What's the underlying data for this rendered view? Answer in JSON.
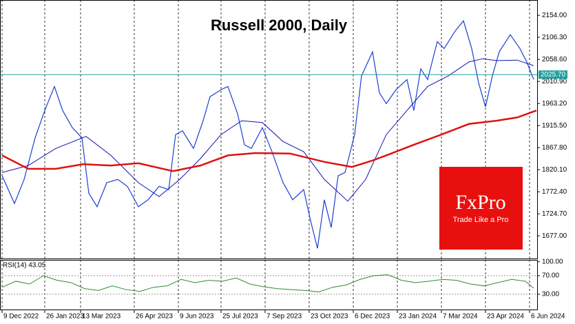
{
  "chart_data": [
    {
      "type": "line",
      "title": "Russell 2000, Daily",
      "xlim": [
        -1.5,
        388.5
      ],
      "xticks": [
        {
          "value": 0,
          "label": "9 Dec 2022"
        },
        {
          "value": 31,
          "label": "26 Jan 2023"
        },
        {
          "value": 57,
          "label": "13 Mar 2023"
        },
        {
          "value": 96,
          "label": "26 Apr 2023"
        },
        {
          "value": 128,
          "label": "9 Jun 2023"
        },
        {
          "value": 159,
          "label": "25 Jul 2023"
        },
        {
          "value": 191,
          "label": "7 Sep 2023"
        },
        {
          "value": 223,
          "label": "23 Oct 2023"
        },
        {
          "value": 255,
          "label": "6 Dec 2023"
        },
        {
          "value": 287,
          "label": "23 Jan 2024"
        },
        {
          "value": 319,
          "label": "7 Mar 2024"
        },
        {
          "value": 351,
          "label": "23 Apr 2024"
        },
        {
          "value": 383,
          "label": "6 Jun 2024"
        }
      ],
      "ylim": [
        1628,
        2187
      ],
      "yticks": [
        {
          "value": 2154,
          "label": "2154.00"
        },
        {
          "value": 2106.3,
          "label": "2106.30"
        },
        {
          "value": 2058.6,
          "label": "2058.60"
        },
        {
          "value": 2010.9,
          "label": "2010.90"
        },
        {
          "value": 1963.2,
          "label": "1963.20"
        },
        {
          "value": 1915.5,
          "label": "1915.50"
        },
        {
          "value": 1867.8,
          "label": "1867.80"
        },
        {
          "value": 1820.1,
          "label": "1820.10"
        },
        {
          "value": 1772.4,
          "label": "1772.40"
        },
        {
          "value": 1724.7,
          "label": "1724.70"
        },
        {
          "value": 1677,
          "label": "1677.00"
        }
      ],
      "current_price": {
        "value": 2025.7,
        "label": "2025.70"
      },
      "current_color": "#20a0a0",
      "series": [
        {
          "color": "#1a3fd0",
          "width": 1.2,
          "x": [
            0,
            9,
            16,
            24,
            31,
            38,
            44,
            51,
            58,
            63,
            69,
            76,
            84,
            91,
            99,
            106,
            114,
            121,
            126,
            131,
            139,
            146,
            151,
            159,
            164,
            171,
            176,
            181,
            189,
            196,
            204,
            211,
            219,
            224,
            229,
            234,
            239,
            244,
            249,
            256,
            261,
            269,
            274,
            279,
            286,
            294,
            299,
            304,
            309,
            316,
            321,
            329,
            335,
            341,
            346,
            351,
            356,
            361,
            369,
            376,
            381,
            386
          ],
          "values": [
            1807,
            1747,
            1799,
            1889,
            1948,
            2000,
            1948,
            1911,
            1889,
            1769,
            1740,
            1792,
            1799,
            1784,
            1740,
            1755,
            1784,
            1777,
            1896,
            1904,
            1866,
            1926,
            1978,
            1993,
            2000,
            1941,
            1874,
            1866,
            1911,
            1859,
            1792,
            1755,
            1777,
            1710,
            1650,
            1755,
            1695,
            1807,
            1814,
            1896,
            2023,
            2075,
            1986,
            1963,
            1993,
            2015,
            1948,
            2038,
            2015,
            2097,
            2082,
            2120,
            2142,
            2082,
            2008,
            1956,
            2023,
            2075,
            2112,
            2082,
            2053,
            2015
          ]
        },
        {
          "color": "#1010b0",
          "width": 1,
          "x": [
            0,
            19,
            39,
            61,
            79,
            99,
            114,
            129,
            144,
            159,
            174,
            189,
            204,
            219,
            234,
            251,
            264,
            279,
            294,
            309,
            324,
            339,
            349,
            359,
            374,
            386
          ],
          "values": [
            1814,
            1829,
            1866,
            1892,
            1851,
            1792,
            1762,
            1799,
            1844,
            1896,
            1926,
            1922,
            1881,
            1859,
            1799,
            1752,
            1799,
            1896,
            1948,
            2000,
            2023,
            2053,
            2060,
            2056,
            2057,
            2045
          ]
        },
        {
          "color": "#e01010",
          "width": 2.5,
          "x": [
            0,
            19,
            39,
            59,
            79,
            99,
            124,
            144,
            164,
            184,
            209,
            234,
            254,
            269,
            279,
            299,
            319,
            339,
            359,
            374,
            388
          ],
          "values": [
            1851,
            1822,
            1822,
            1832,
            1829,
            1834,
            1817,
            1829,
            1851,
            1856,
            1855,
            1837,
            1826,
            1840,
            1851,
            1874,
            1896,
            1919,
            1926,
            1933,
            1948
          ]
        }
      ]
    },
    {
      "type": "line",
      "title": "RSI(14) 43.05",
      "xlim": [
        -1.5,
        388.5
      ],
      "ylim": [
        -3,
        104
      ],
      "yticks": [
        {
          "value": 100,
          "label": "100.00"
        },
        {
          "value": 70,
          "label": "70.00"
        },
        {
          "value": 30,
          "label": "30.00"
        }
      ],
      "series": [
        {
          "color": "#2e8b2e",
          "width": 1,
          "x": [
            0,
            10,
            20,
            30,
            40,
            50,
            60,
            70,
            80,
            90,
            100,
            110,
            120,
            130,
            140,
            150,
            160,
            170,
            180,
            190,
            200,
            210,
            220,
            230,
            240,
            250,
            260,
            270,
            280,
            290,
            300,
            310,
            320,
            330,
            340,
            350,
            360,
            370,
            380,
            386
          ],
          "values": [
            45,
            58,
            52,
            70,
            60,
            55,
            42,
            38,
            48,
            40,
            36,
            45,
            48,
            62,
            55,
            60,
            58,
            65,
            52,
            46,
            42,
            40,
            38,
            35,
            45,
            50,
            62,
            70,
            72,
            60,
            55,
            58,
            62,
            60,
            52,
            48,
            55,
            62,
            58,
            43
          ]
        }
      ]
    }
  ],
  "branding": {
    "name": "FxPro",
    "slogan": "Trade Like a Pro"
  }
}
